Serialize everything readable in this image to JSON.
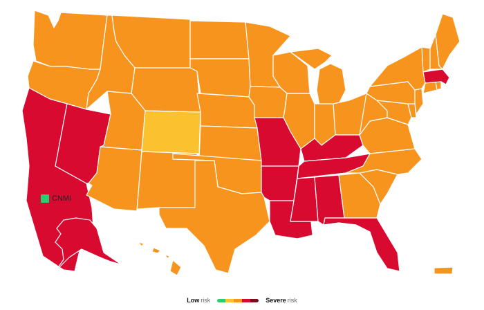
{
  "colors": {
    "low": "#2ecc71",
    "moderate": "#f9c22e",
    "high": "#f7941e",
    "very_high": "#d90a30",
    "severe": "#7a0c1e"
  },
  "cnmi": {
    "label": "CNMI",
    "level": "low"
  },
  "legend": {
    "low_word": "Low",
    "low_rest": "risk",
    "severe_word": "Severe",
    "severe_rest": "risk",
    "levels": [
      "low",
      "moderate",
      "high",
      "very_high",
      "severe"
    ]
  },
  "states": [
    {
      "id": "WA",
      "level": "high"
    },
    {
      "id": "OR",
      "level": "high"
    },
    {
      "id": "CA",
      "level": "very_high"
    },
    {
      "id": "NV",
      "level": "very_high"
    },
    {
      "id": "ID",
      "level": "high"
    },
    {
      "id": "MT",
      "level": "high"
    },
    {
      "id": "WY",
      "level": "high"
    },
    {
      "id": "UT",
      "level": "high"
    },
    {
      "id": "CO",
      "level": "moderate"
    },
    {
      "id": "AZ",
      "level": "high"
    },
    {
      "id": "NM",
      "level": "high"
    },
    {
      "id": "ND",
      "level": "high"
    },
    {
      "id": "SD",
      "level": "high"
    },
    {
      "id": "NE",
      "level": "high"
    },
    {
      "id": "KS",
      "level": "high"
    },
    {
      "id": "OK",
      "level": "high"
    },
    {
      "id": "TX",
      "level": "high"
    },
    {
      "id": "MN",
      "level": "high"
    },
    {
      "id": "IA",
      "level": "high"
    },
    {
      "id": "MO",
      "level": "very_high"
    },
    {
      "id": "AR",
      "level": "very_high"
    },
    {
      "id": "LA",
      "level": "very_high"
    },
    {
      "id": "WI",
      "level": "high"
    },
    {
      "id": "IL",
      "level": "high"
    },
    {
      "id": "MI",
      "level": "high"
    },
    {
      "id": "IN",
      "level": "high"
    },
    {
      "id": "OH",
      "level": "high"
    },
    {
      "id": "KY",
      "level": "very_high"
    },
    {
      "id": "TN",
      "level": "very_high"
    },
    {
      "id": "MS",
      "level": "very_high"
    },
    {
      "id": "AL",
      "level": "very_high"
    },
    {
      "id": "GA",
      "level": "high"
    },
    {
      "id": "FL",
      "level": "very_high"
    },
    {
      "id": "SC",
      "level": "high"
    },
    {
      "id": "NC",
      "level": "high"
    },
    {
      "id": "VA",
      "level": "high"
    },
    {
      "id": "WV",
      "level": "high"
    },
    {
      "id": "MD",
      "level": "high"
    },
    {
      "id": "DE",
      "level": "high"
    },
    {
      "id": "PA",
      "level": "high"
    },
    {
      "id": "NJ",
      "level": "high"
    },
    {
      "id": "NY",
      "level": "high"
    },
    {
      "id": "CT",
      "level": "high"
    },
    {
      "id": "RI",
      "level": "high"
    },
    {
      "id": "MA",
      "level": "very_high"
    },
    {
      "id": "VT",
      "level": "high"
    },
    {
      "id": "NH",
      "level": "high"
    },
    {
      "id": "ME",
      "level": "high"
    },
    {
      "id": "AK",
      "level": "very_high"
    },
    {
      "id": "HI",
      "level": "high"
    },
    {
      "id": "PR",
      "level": "high"
    }
  ]
}
